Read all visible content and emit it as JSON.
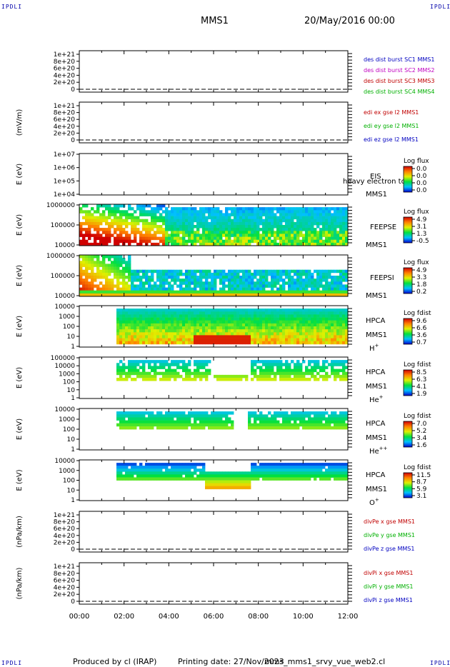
{
  "corner_label": "IPDLI",
  "header": {
    "spacecraft": "MMS1",
    "date": "20/May/2016 00:00"
  },
  "footer": {
    "produced_by": "Produced by cl (IRAP)",
    "printing_date": "Printing date: 27/Nov/2023",
    "script": "mms_mms1_srvy_vue_web2.cl"
  },
  "time_axis": {
    "ticks": [
      "00:00",
      "02:00",
      "04:00",
      "06:00",
      "08:00",
      "10:00",
      "12:00"
    ],
    "range_hours": [
      0,
      12
    ]
  },
  "chart_data": [
    {
      "id": "p1",
      "type": "line",
      "ylabel": "",
      "yticks": [
        "1e+21",
        "8e+20",
        "6e+20",
        "4e+20",
        "2e+20",
        "0"
      ],
      "ylim": [
        0,
        1e+21
      ],
      "dashed_zero": true,
      "legend": [
        {
          "text": "des dist burst SC1 MMS1",
          "color": "#0000c0"
        },
        {
          "text": "des dist burst SC2 MMS2",
          "color": "#c000c0"
        },
        {
          "text": "des dist burst SC3 MMS3",
          "color": "#c00000"
        },
        {
          "text": "des dist burst SC4 MMS4",
          "color": "#00b000"
        }
      ]
    },
    {
      "id": "p2",
      "type": "line",
      "ylabel": "(mV/m)",
      "yticks": [
        "1e+21",
        "8e+20",
        "6e+20",
        "4e+20",
        "2e+20",
        "0"
      ],
      "ylim": [
        0,
        1e+21
      ],
      "dashed_zero": true,
      "legend": [
        {
          "text": "edi ex gse l2 MMS1",
          "color": "#c00000"
        },
        {
          "text": "edi ey gse l2 MMS1",
          "color": "#00b000"
        },
        {
          "text": "edi ez gse l2 MMS1",
          "color": "#0000c0"
        }
      ]
    },
    {
      "id": "p3",
      "type": "heatmap",
      "ylabel": "E (eV)",
      "yticks": [
        "1e+07",
        "1e+06",
        "1e+05",
        "1e+04"
      ],
      "ylim": [
        10000.0,
        10000000.0
      ],
      "log_y": true,
      "side_labels": [
        "EIS",
        "MMS1"
      ],
      "overlay_text": "heavy electron to",
      "colorbar": {
        "title": "Log flux",
        "ticks": [
          "0.0",
          "0.0",
          "0.0",
          "0.0"
        ]
      }
    },
    {
      "id": "p4",
      "type": "heatmap",
      "ylabel": "E (eV)",
      "yticks": [
        "1000000",
        "100000",
        "10000"
      ],
      "ylim": [
        10000.0,
        1000000.0
      ],
      "log_y": true,
      "side_labels": [
        "FEEPSE",
        "MMS1"
      ],
      "colorbar": {
        "title": "Log flux",
        "ticks": [
          "4.9",
          "3.1",
          "1.3",
          "-0.5"
        ]
      }
    },
    {
      "id": "p5",
      "type": "heatmap",
      "ylabel": "E (eV)",
      "yticks": [
        "1000000",
        "100000",
        "10000"
      ],
      "ylim": [
        10000.0,
        1000000.0
      ],
      "log_y": true,
      "side_labels": [
        "FEEPSI",
        "MMS1"
      ],
      "colorbar": {
        "title": "Log flux",
        "ticks": [
          "4.9",
          "3.3",
          "1.8",
          "0.2"
        ]
      }
    },
    {
      "id": "p6",
      "type": "heatmap",
      "ylabel": "E (eV)",
      "yticks": [
        "10000",
        "1000",
        "100",
        "10",
        "1"
      ],
      "ylim": [
        1,
        30000.0
      ],
      "log_y": true,
      "side_labels": [
        "HPCA",
        "MMS1"
      ],
      "species": "H",
      "species_sup": "+",
      "colorbar": {
        "title": "Log fdist",
        "ticks": [
          "9.6",
          "6.6",
          "3.6",
          "0.7"
        ]
      }
    },
    {
      "id": "p7",
      "type": "heatmap",
      "ylabel": "E (eV)",
      "yticks": [
        "100000",
        "10000",
        "1000",
        "100",
        "10",
        "1"
      ],
      "ylim": [
        1,
        100000.0
      ],
      "log_y": true,
      "side_labels": [
        "HPCA",
        "MMS1"
      ],
      "species": "He",
      "species_sup": "+",
      "colorbar": {
        "title": "Log fdist",
        "ticks": [
          "8.5",
          "6.3",
          "4.1",
          "1.9"
        ]
      }
    },
    {
      "id": "p8",
      "type": "heatmap",
      "ylabel": "E (eV)",
      "yticks": [
        "10000",
        "1000",
        "100",
        "10",
        "1"
      ],
      "ylim": [
        1,
        30000.0
      ],
      "log_y": true,
      "side_labels": [
        "HPCA",
        "MMS1"
      ],
      "species": "He",
      "species_sup": "++",
      "colorbar": {
        "title": "Log fdist",
        "ticks": [
          "7.0",
          "5.2",
          "3.4",
          "1.6"
        ]
      }
    },
    {
      "id": "p9",
      "type": "heatmap",
      "ylabel": "E (eV)",
      "yticks": [
        "10000",
        "1000",
        "100",
        "10",
        "1"
      ],
      "ylim": [
        1,
        30000.0
      ],
      "log_y": true,
      "side_labels": [
        "HPCA",
        "MMS1"
      ],
      "species": "O",
      "species_sup": "+",
      "colorbar": {
        "title": "Log fdist",
        "ticks": [
          "11.5",
          "8.7",
          "5.9",
          "3.1"
        ]
      }
    },
    {
      "id": "p10",
      "type": "line",
      "ylabel": "(nPa/km)",
      "yticks": [
        "1e+21",
        "8e+20",
        "6e+20",
        "4e+20",
        "2e+20",
        "0"
      ],
      "ylim": [
        0,
        1e+21
      ],
      "dashed_zero": true,
      "legend": [
        {
          "text": "divPe x gse MMS1",
          "color": "#c00000"
        },
        {
          "text": "divPe y gse MMS1",
          "color": "#00b000"
        },
        {
          "text": "divPe z gse MMS1",
          "color": "#0000c0"
        }
      ]
    },
    {
      "id": "p11",
      "type": "line",
      "ylabel": "(nPa/km)",
      "yticks": [
        "1e+21",
        "8e+20",
        "6e+20",
        "4e+20",
        "2e+20",
        "0"
      ],
      "ylim": [
        0,
        1e+21
      ],
      "dashed_zero": true,
      "legend": [
        {
          "text": "divPi x gse MMS1",
          "color": "#c00000"
        },
        {
          "text": "divPi y gse MMS1",
          "color": "#00b000"
        },
        {
          "text": "divPi z gse MMS1",
          "color": "#0000c0"
        }
      ]
    }
  ]
}
